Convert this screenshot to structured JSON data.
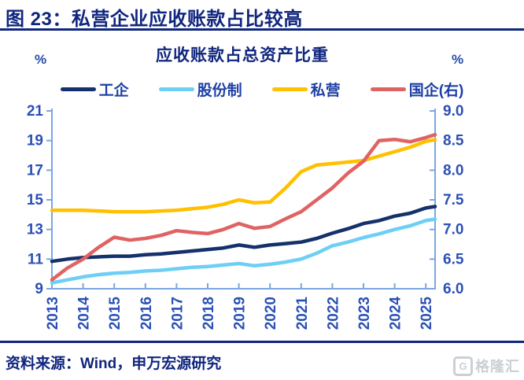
{
  "header": {
    "title": "图 23：私营企业应收账款占比较高"
  },
  "footer": {
    "source": "资料来源：Wind，申万宏源研究",
    "logo_text": "格隆汇",
    "logo_glyph": "G"
  },
  "colors": {
    "title_navy": "#10267E",
    "axis_line": "#7BA6DF",
    "tick_label_blue": "#2B50B5",
    "legend_text_blue": "#1D3FA5",
    "watermark_gray": "#C9CDD3"
  },
  "chart_data": {
    "type": "line",
    "title": "应收账款占总资产比重",
    "legend_position": "top",
    "grid": false,
    "x_start": 2013,
    "x_step": 0.5,
    "x_tick_labels": [
      "2013",
      "2014",
      "2015",
      "2016",
      "2017",
      "2018",
      "2019",
      "2020",
      "2021",
      "2022",
      "2023",
      "2024",
      "2025"
    ],
    "left_axis": {
      "unit": "%",
      "min": 9,
      "max": 21,
      "ticks": [
        9,
        11,
        13,
        15,
        17,
        19,
        21
      ]
    },
    "right_axis": {
      "unit": "%",
      "min": 6,
      "max": 9,
      "ticks": [
        6.0,
        6.5,
        7.0,
        7.5,
        8.0,
        8.5,
        9.0
      ]
    },
    "series": [
      {
        "name": "工企",
        "axis": "left",
        "color": "#14316B",
        "values": [
          10.85,
          11.0,
          11.1,
          11.15,
          11.2,
          11.2,
          11.3,
          11.35,
          11.45,
          11.55,
          11.65,
          11.75,
          11.95,
          11.8,
          11.95,
          12.05,
          12.15,
          12.4,
          12.75,
          13.05,
          13.4,
          13.6,
          13.9,
          14.1,
          14.45,
          14.55
        ]
      },
      {
        "name": "股份制",
        "axis": "left",
        "color": "#6DCFF6",
        "values": [
          9.4,
          9.6,
          9.8,
          9.95,
          10.05,
          10.1,
          10.2,
          10.25,
          10.35,
          10.45,
          10.5,
          10.6,
          10.7,
          10.55,
          10.65,
          10.8,
          11.0,
          11.4,
          11.9,
          12.15,
          12.45,
          12.7,
          13.0,
          13.25,
          13.6,
          13.7
        ]
      },
      {
        "name": "私营",
        "axis": "left",
        "color": "#FFC000",
        "values": [
          14.3,
          14.3,
          14.3,
          14.25,
          14.2,
          14.2,
          14.2,
          14.25,
          14.3,
          14.4,
          14.5,
          14.7,
          15.0,
          14.8,
          14.85,
          15.8,
          16.9,
          17.35,
          17.45,
          17.55,
          17.65,
          17.95,
          18.25,
          18.55,
          18.95,
          19.05
        ]
      },
      {
        "name": "国企(右)",
        "axis": "right",
        "color": "#E06363",
        "values": [
          6.15,
          6.35,
          6.5,
          6.7,
          6.87,
          6.82,
          6.85,
          6.9,
          6.98,
          6.95,
          6.93,
          7.0,
          7.1,
          7.02,
          7.05,
          7.18,
          7.3,
          7.5,
          7.7,
          7.95,
          8.15,
          8.5,
          8.52,
          8.48,
          8.55,
          8.6
        ]
      }
    ]
  }
}
